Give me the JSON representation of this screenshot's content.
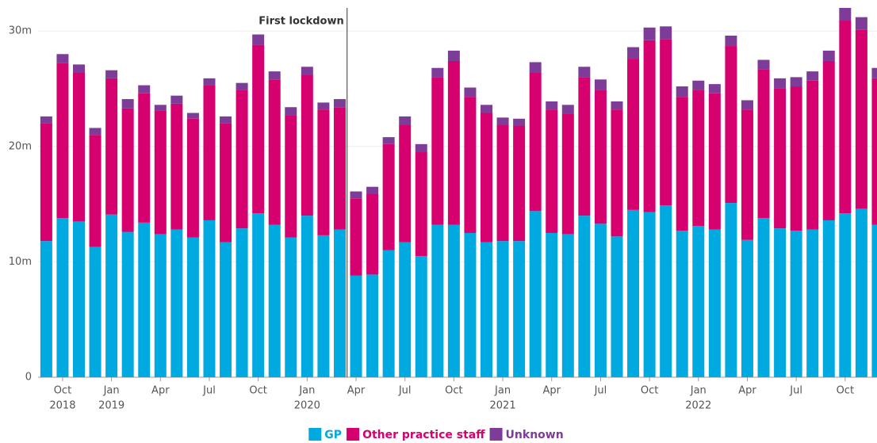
{
  "chart_data": {
    "type": "stacked_bar",
    "annotation": "First lockdown",
    "categories": [
      null,
      "Oct",
      null,
      null,
      "Jan",
      null,
      null,
      "Apr",
      null,
      null,
      "Jul",
      null,
      null,
      "Oct",
      null,
      null,
      "Jan",
      null,
      null,
      "Apr",
      null,
      null,
      "Jul",
      null,
      null,
      "Oct",
      null,
      null,
      "Jan",
      null,
      null,
      "Apr",
      null,
      null,
      "Jul",
      null,
      null,
      "Oct",
      null,
      null,
      "Jan",
      null,
      null,
      "Apr",
      null,
      null,
      "Jul",
      null,
      null,
      "Oct",
      null,
      null
    ],
    "years": [
      null,
      "2018",
      null,
      null,
      "2019",
      null,
      null,
      null,
      null,
      null,
      null,
      null,
      null,
      null,
      null,
      null,
      "2020",
      null,
      null,
      null,
      null,
      null,
      null,
      null,
      null,
      null,
      null,
      null,
      "2021",
      null,
      null,
      null,
      null,
      null,
      null,
      null,
      null,
      null,
      null,
      null,
      "2022",
      null,
      null,
      null,
      null,
      null,
      null,
      null,
      null,
      null,
      null,
      null
    ],
    "series": [
      {
        "name": "GP",
        "color": "#00a9e0",
        "values": [
          11.8,
          13.8,
          13.5,
          11.3,
          14.1,
          12.6,
          13.4,
          12.4,
          12.8,
          12.1,
          13.6,
          11.7,
          12.9,
          14.2,
          13.2,
          12.1,
          14.0,
          12.3,
          12.8,
          8.8,
          8.9,
          11.0,
          11.7,
          10.5,
          13.2,
          13.2,
          12.5,
          11.7,
          11.8,
          11.8,
          14.4,
          12.5,
          12.4,
          14.0,
          13.3,
          12.2,
          14.5,
          14.3,
          14.9,
          12.7,
          13.1,
          12.8,
          15.1,
          11.9,
          13.8,
          12.9,
          12.7,
          12.8,
          13.6,
          14.2,
          14.6,
          13.2
        ]
      },
      {
        "name": "Other practice staff",
        "color": "#d6006f",
        "values": [
          10.2,
          13.4,
          12.9,
          9.7,
          11.8,
          10.7,
          11.2,
          10.7,
          10.9,
          10.3,
          11.7,
          10.3,
          12.0,
          14.6,
          12.6,
          10.6,
          12.2,
          10.9,
          10.6,
          6.7,
          7.0,
          9.2,
          10.2,
          9.0,
          12.8,
          14.2,
          11.8,
          11.2,
          10.1,
          10.0,
          12.0,
          10.7,
          10.4,
          12.0,
          11.6,
          11.0,
          13.1,
          14.9,
          14.4,
          11.6,
          11.8,
          11.8,
          13.6,
          11.3,
          12.9,
          12.1,
          12.5,
          12.9,
          13.8,
          16.7,
          15.5,
          12.7
        ]
      },
      {
        "name": "Unknown",
        "color": "#7d3c98",
        "values": [
          0.6,
          0.8,
          0.7,
          0.6,
          0.7,
          0.8,
          0.7,
          0.5,
          0.7,
          0.5,
          0.6,
          0.6,
          0.6,
          0.9,
          0.7,
          0.7,
          0.7,
          0.6,
          0.7,
          0.6,
          0.6,
          0.6,
          0.7,
          0.7,
          0.8,
          0.9,
          0.8,
          0.7,
          0.6,
          0.6,
          0.9,
          0.7,
          0.8,
          0.9,
          0.9,
          0.7,
          1.0,
          1.1,
          1.1,
          0.9,
          0.8,
          0.8,
          0.9,
          0.8,
          0.8,
          0.9,
          0.8,
          0.8,
          0.9,
          1.1,
          1.1,
          0.9
        ]
      }
    ],
    "ylim": [
      0,
      32
    ],
    "yticks": [
      0,
      {
        "value": 10,
        "label": "10m"
      },
      {
        "value": 20,
        "label": "20m"
      },
      {
        "value": 30,
        "label": "30m"
      }
    ],
    "grid": true
  }
}
